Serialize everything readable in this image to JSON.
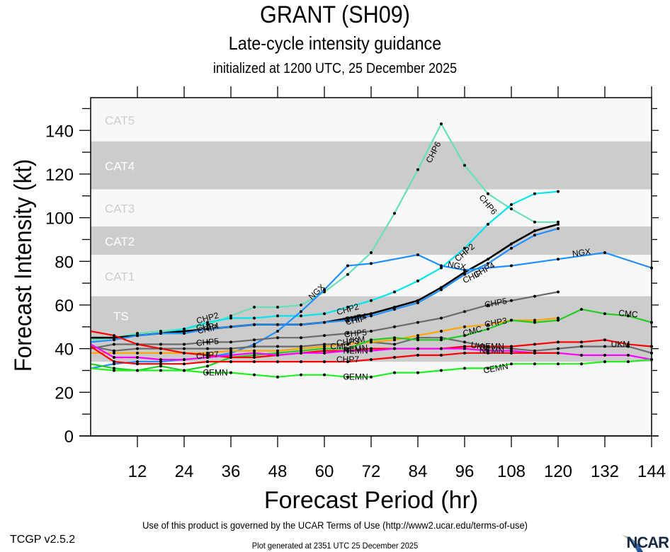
{
  "header": {
    "title": "GRANT (SH09)",
    "subtitle": "Late-cycle intensity guidance",
    "initialized": "initialized at 1200 UTC, 25 December 2025"
  },
  "footer": {
    "terms": "Use of this product is governed by the UCAR Terms of Use (http://www2.ucar.edu/terms-of-use)",
    "generated": "Plot generated at 2351 UTC   25 December 2025",
    "version": "TCGP v2.5.2",
    "logo": "NCAR"
  },
  "chart_data": {
    "type": "line",
    "title": "GRANT (SH09)",
    "subtitle": "Late-cycle intensity guidance",
    "xlabel": "Forecast Period (hr)",
    "ylabel": "Forecast Intensity (kt)",
    "xlim": [
      0,
      144
    ],
    "ylim": [
      0,
      155
    ],
    "xticks": [
      12,
      24,
      36,
      48,
      60,
      72,
      84,
      96,
      108,
      120,
      132,
      144
    ],
    "yticks": [
      0,
      20,
      40,
      60,
      80,
      100,
      120,
      140
    ],
    "grid": false,
    "legend": "inline labels",
    "category_bands": [
      {
        "label": "TS",
        "min": 34,
        "max": 64,
        "shade": "dark"
      },
      {
        "label": "CAT1",
        "min": 64,
        "max": 83,
        "shade": "light"
      },
      {
        "label": "CAT2",
        "min": 83,
        "max": 96,
        "shade": "dark"
      },
      {
        "label": "CAT3",
        "min": 96,
        "max": 113,
        "shade": "light"
      },
      {
        "label": "CAT4",
        "min": 113,
        "max": 135,
        "shade": "dark"
      },
      {
        "label": "CAT5",
        "min": 135,
        "max": 155,
        "shade": "light"
      }
    ],
    "colors": {
      "band_dark": "#cccccc",
      "band_light": "#f8f8f8",
      "band_label_dark": "#ffffff",
      "band_label_light": "#cccccc"
    },
    "series": [
      {
        "name": "CHP6",
        "color": "#66e0b8",
        "label_at": [
          [
            88,
            130
          ],
          [
            102,
            106
          ]
        ],
        "x": [
          0,
          6,
          12,
          18,
          24,
          30,
          36,
          42,
          48,
          54,
          60,
          66,
          72,
          78,
          84,
          90,
          96,
          102,
          108,
          114,
          120
        ],
        "y": [
          44,
          45,
          47,
          48,
          49,
          51,
          55,
          59,
          59,
          60,
          66,
          74,
          84,
          102,
          122,
          143,
          124,
          111,
          104,
          98,
          98
        ]
      },
      {
        "name": "CHP2",
        "color": "#00e5ee",
        "label_at": [
          [
            30,
            54
          ],
          [
            66,
            58
          ],
          [
            96,
            84
          ]
        ],
        "x": [
          0,
          6,
          12,
          18,
          24,
          30,
          36,
          42,
          48,
          54,
          60,
          66,
          72,
          78,
          84,
          90,
          96,
          102,
          108,
          114,
          120
        ],
        "y": [
          45,
          45,
          46,
          47,
          49,
          52,
          54,
          54,
          55,
          55,
          56,
          59,
          62,
          66,
          71,
          77,
          86,
          97,
          106,
          111,
          112
        ]
      },
      {
        "name": "CHP4",
        "color": "#000000",
        "label_at": [
          [
            30,
            50
          ],
          [
            68,
            54
          ],
          [
            101,
            76
          ]
        ],
        "x": [
          0,
          6,
          12,
          18,
          24,
          30,
          36,
          42,
          48,
          54,
          60,
          66,
          72,
          78,
          84,
          90,
          96,
          102,
          108,
          114,
          120
        ],
        "y": [
          45,
          45,
          46,
          47,
          48,
          49,
          50,
          51,
          51,
          51,
          52,
          54,
          56,
          59,
          62,
          68,
          75,
          81,
          88,
          94,
          97
        ]
      },
      {
        "name": "CHIP",
        "color": "#1e90ff",
        "label_at": [
          [
            30,
            49
          ],
          [
            68,
            53
          ],
          [
            98,
            73
          ]
        ],
        "x": [
          0,
          6,
          12,
          18,
          24,
          30,
          36,
          42,
          48,
          54,
          60,
          66,
          72,
          78,
          84,
          90,
          96,
          102,
          108,
          114,
          120
        ],
        "y": [
          43,
          44,
          46,
          47,
          47,
          49,
          50,
          51,
          51,
          51,
          52,
          53,
          55,
          58,
          61,
          67,
          74,
          79,
          86,
          92,
          95
        ]
      },
      {
        "name": "NGX",
        "color": "#1e90ff",
        "label_at": [
          [
            58,
            66
          ],
          [
            94,
            78
          ],
          [
            126,
            84
          ]
        ],
        "x": [
          0,
          6,
          12,
          18,
          24,
          30,
          36,
          42,
          48,
          54,
          60,
          66,
          72,
          84,
          90,
          96,
          108,
          120,
          132,
          144
        ],
        "y": [
          31,
          33,
          34,
          34,
          35,
          36,
          38,
          42,
          48,
          57,
          67,
          78,
          79,
          83,
          78,
          76,
          78,
          81,
          84,
          77
        ]
      },
      {
        "name": "CHP5",
        "color": "#6b6b6b",
        "label_at": [
          [
            30,
            43
          ],
          [
            68,
            47
          ],
          [
            104,
            61
          ]
        ],
        "x": [
          0,
          6,
          12,
          18,
          24,
          30,
          36,
          42,
          48,
          54,
          60,
          66,
          72,
          78,
          84,
          90,
          96,
          102,
          108,
          114,
          120
        ],
        "y": [
          40,
          42,
          42,
          42,
          42,
          43,
          43,
          44,
          45,
          45,
          46,
          47,
          48,
          50,
          52,
          54,
          57,
          60,
          62,
          64,
          66
        ]
      },
      {
        "name": "UKM",
        "color": "#6b6b6b",
        "label_at": [
          [
            68,
            44
          ],
          [
            100,
            41
          ],
          [
            136,
            42
          ]
        ],
        "x": [
          0,
          6,
          12,
          18,
          24,
          30,
          36,
          42,
          48,
          54,
          60,
          66,
          72,
          78,
          84,
          90,
          96,
          102,
          108,
          114,
          120,
          126,
          132,
          138,
          144
        ],
        "y": [
          41,
          39,
          40,
          40,
          40,
          40,
          40,
          41,
          41,
          41,
          42,
          42,
          43,
          42,
          45,
          45,
          43,
          41,
          40,
          39,
          40,
          41,
          41,
          41,
          38
        ]
      },
      {
        "name": "CHP3",
        "color": "#ffa500",
        "label_at": [
          [
            66,
            43
          ],
          [
            104,
            52
          ]
        ],
        "x": [
          0,
          6,
          12,
          18,
          24,
          30,
          36,
          42,
          48,
          54,
          60,
          66,
          72,
          78,
          84,
          90,
          96,
          102,
          108,
          114,
          120
        ],
        "y": [
          38,
          38,
          38,
          38,
          38,
          38,
          39,
          39,
          39,
          40,
          41,
          42,
          43,
          44,
          46,
          48,
          50,
          51,
          53,
          53,
          54
        ]
      },
      {
        "name": "CMC",
        "color": "#22cc22",
        "label_at": [
          [
            64,
            41
          ],
          [
            98,
            48
          ],
          [
            138,
            56
          ]
        ],
        "x": [
          0,
          6,
          12,
          18,
          24,
          30,
          36,
          42,
          48,
          54,
          60,
          66,
          72,
          78,
          84,
          90,
          96,
          102,
          108,
          114,
          120,
          126,
          132,
          138,
          144
        ],
        "y": [
          33,
          31,
          30,
          32,
          30,
          32,
          36,
          37,
          38,
          39,
          40,
          40,
          44,
          45,
          44,
          44,
          46,
          49,
          53,
          52,
          53,
          58,
          56,
          55,
          52
        ]
      },
      {
        "name": "AEMN",
        "color": "#ff0000",
        "label_at": [
          [
            68,
            40
          ],
          [
            103,
            41
          ]
        ],
        "x": [
          0,
          6,
          12,
          18,
          24,
          30,
          36,
          42,
          48,
          54,
          60,
          66,
          72,
          78,
          84,
          90,
          96,
          102,
          108,
          114,
          120,
          126,
          132,
          138,
          144
        ],
        "y": [
          48,
          46,
          42,
          40,
          38,
          37,
          36,
          36,
          37,
          38,
          39,
          39,
          40,
          40,
          40,
          40,
          41,
          41,
          41,
          42,
          43,
          43,
          44,
          42,
          41
        ]
      },
      {
        "name": "NEMN",
        "color": "#ff00ff",
        "label_at": [
          [
            68,
            39
          ],
          [
            103,
            39
          ]
        ],
        "x": [
          0,
          6,
          12,
          18,
          24,
          30,
          36,
          42,
          48,
          54,
          60,
          66,
          72,
          78,
          84,
          90,
          96,
          102,
          108,
          114,
          120,
          126,
          132,
          138,
          144
        ],
        "y": [
          42,
          36,
          36,
          35,
          35,
          36,
          37,
          38,
          37,
          38,
          38,
          39,
          39,
          40,
          40,
          40,
          40,
          39,
          39,
          38,
          38,
          37,
          37,
          37,
          35
        ]
      },
      {
        "name": "CHP7",
        "color": "#ff0000",
        "label_at": [
          [
            30,
            37
          ],
          [
            66,
            35
          ]
        ],
        "x": [
          0,
          6,
          12,
          18,
          24,
          30,
          36,
          42,
          48,
          54,
          60,
          66,
          72,
          78,
          84,
          90,
          96,
          102,
          108,
          114,
          120
        ],
        "y": [
          41,
          34,
          33,
          33,
          33,
          34,
          34,
          34,
          34,
          34,
          34,
          34,
          35,
          36,
          37,
          37,
          38,
          38,
          38,
          38,
          38
        ]
      },
      {
        "name": "CEMN",
        "color": "#22ee22",
        "label_at": [
          [
            32,
            29
          ],
          [
            68,
            27
          ],
          [
            104,
            31
          ]
        ],
        "x": [
          0,
          6,
          12,
          18,
          24,
          30,
          36,
          42,
          48,
          54,
          60,
          66,
          72,
          78,
          84,
          90,
          96,
          102,
          108,
          114,
          120,
          126,
          132,
          138,
          144
        ],
        "y": [
          31,
          30,
          30,
          30,
          30,
          29,
          29,
          28,
          27,
          28,
          28,
          27,
          27,
          29,
          29,
          30,
          31,
          31,
          33,
          33,
          33,
          33,
          34,
          34,
          35
        ]
      }
    ]
  }
}
